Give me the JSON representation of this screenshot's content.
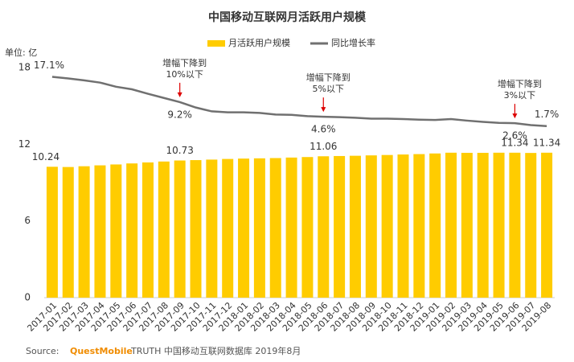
{
  "chart_data": {
    "type": "bar-line",
    "title": "中国移动互联网月活跃用户规模",
    "y_unit_label": "单位: 亿",
    "categories": [
      "2017-01",
      "2017-02",
      "2017-03",
      "2017-04",
      "2017-05",
      "2017-06",
      "2017-07",
      "2017-08",
      "2017-09",
      "2017-10",
      "2017-11",
      "2017-12",
      "2018-01",
      "2018-02",
      "2018-03",
      "2018-04",
      "2018-05",
      "2018-06",
      "2018-07",
      "2018-08",
      "2018-09",
      "2018-10",
      "2018-11",
      "2018-12",
      "2019-01",
      "2019-02",
      "2019-03",
      "2019-04",
      "2019-05",
      "2019-06",
      "2019-07",
      "2019-08"
    ],
    "series": [
      {
        "name": "月活跃用户规模",
        "type": "bar",
        "color": "#ffcc00",
        "values": [
          10.24,
          10.22,
          10.28,
          10.35,
          10.42,
          10.5,
          10.58,
          10.65,
          10.73,
          10.76,
          10.8,
          10.85,
          10.88,
          10.9,
          10.92,
          10.96,
          11.0,
          11.06,
          11.08,
          11.1,
          11.13,
          11.16,
          11.2,
          11.23,
          11.28,
          11.34,
          11.33,
          11.33,
          11.34,
          11.34,
          11.32,
          11.34
        ],
        "value_labels": [
          "10.24",
          null,
          null,
          null,
          null,
          null,
          null,
          null,
          "10.73",
          null,
          null,
          null,
          null,
          null,
          null,
          null,
          null,
          "11.06",
          null,
          null,
          null,
          null,
          null,
          null,
          null,
          null,
          null,
          null,
          null,
          "11.34",
          null,
          "11.34"
        ]
      },
      {
        "name": "同比增长率",
        "type": "line",
        "axis": "y2",
        "color": "#707070",
        "values": [
          17.1,
          16.6,
          16.0,
          15.3,
          14.0,
          13.2,
          11.8,
          10.5,
          9.2,
          7.5,
          6.3,
          6.0,
          6.0,
          5.8,
          5.3,
          5.2,
          4.8,
          4.6,
          4.5,
          4.3,
          4.0,
          4.0,
          3.9,
          3.7,
          3.6,
          3.9,
          3.4,
          3.0,
          2.7,
          2.6,
          2.0,
          1.7
        ],
        "value_labels": [
          "17.1%",
          null,
          null,
          null,
          null,
          null,
          null,
          null,
          "9.2%",
          null,
          null,
          null,
          null,
          null,
          null,
          null,
          null,
          "4.6%",
          null,
          null,
          null,
          null,
          null,
          null,
          null,
          null,
          null,
          null,
          null,
          "2.6%",
          null,
          "1.7%"
        ]
      }
    ],
    "ylim": [
      0,
      18
    ],
    "yticks": [
      0,
      6,
      12,
      18
    ],
    "y2lim": [
      -52,
      20
    ],
    "annotations": [
      {
        "lines": [
          "增幅下降到",
          "10%以下"
        ]
      },
      {
        "lines": [
          "增幅下降到",
          "5%以下"
        ]
      },
      {
        "lines": [
          "增幅下降到",
          "3%以下"
        ]
      }
    ],
    "source": {
      "prefix": "Source:",
      "brand": "QuestMobile",
      "rest": "TRUTH 中国移动互联网数据库 2019年8月"
    }
  }
}
